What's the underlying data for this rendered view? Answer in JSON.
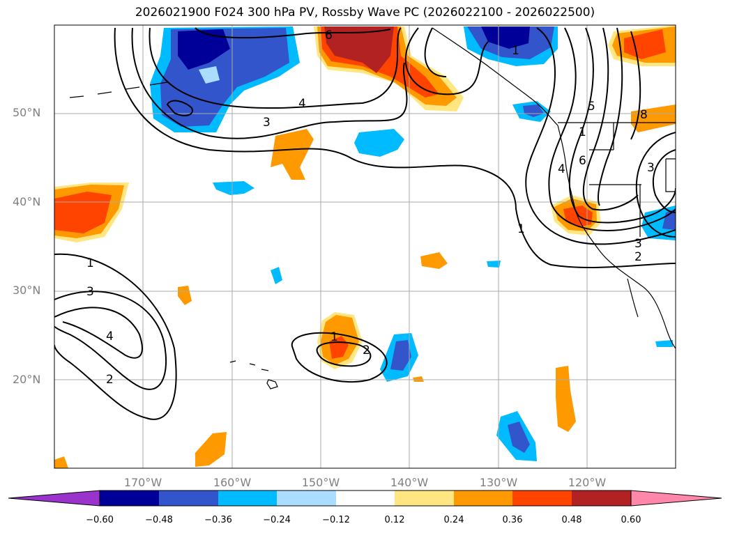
{
  "title": "2026021900 F024 300 hPa PV, Rossby Wave PC (2026022100 - 2026022500)",
  "lat_labels": [
    "50°N",
    "40°N",
    "30°N",
    "20°N"
  ],
  "lon_labels": [
    "170°W",
    "160°W",
    "150°W",
    "140°W",
    "130°W",
    "120°W"
  ],
  "colorbar": {
    "ticks": [
      "−0.60",
      "−0.48",
      "−0.36",
      "−0.24",
      "−0.12",
      "0.12",
      "0.24",
      "0.36",
      "0.48",
      "0.60"
    ],
    "colors": [
      "#9933cc",
      "#000099",
      "#3355cc",
      "#00bbff",
      "#aaddff",
      "#ffffff",
      "#ffe680",
      "#ff9900",
      "#ff4400",
      "#b22222",
      "#ff88aa"
    ]
  },
  "contour_labels": [
    "6",
    "4",
    "3",
    "1",
    "5",
    "8",
    "1",
    "6",
    "4",
    "3",
    "3",
    "2",
    "1",
    "1",
    "3",
    "4",
    "2",
    "1",
    "2"
  ]
}
